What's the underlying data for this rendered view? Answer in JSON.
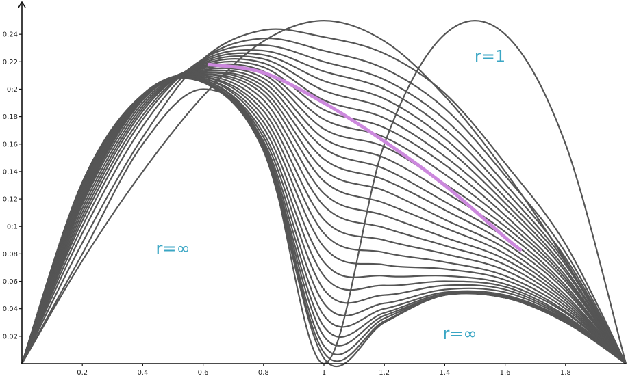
{
  "chart_data": {
    "type": "line",
    "title": "",
    "xlabel": "",
    "ylabel": "",
    "xlim": [
      0,
      2
    ],
    "ylim": [
      0,
      0.26
    ],
    "grid": false,
    "x_ticks": [
      "0.2",
      "0.4",
      "0.6",
      "0.8",
      "1",
      "1.2",
      "1.4",
      "1.6",
      "1.8"
    ],
    "y_ticks": [
      "0.02",
      "0.04",
      "0.06",
      "0.08",
      "0:1",
      "0.12",
      "0.14",
      "0.16",
      "0.18",
      "0:2",
      "0.22",
      "0.24"
    ],
    "annotations": [
      {
        "text": "r=1",
        "x": 1.55,
        "y": 0.22
      },
      {
        "text": "r=∞",
        "x": 0.5,
        "y": 0.08
      },
      {
        "text": "r=∞",
        "x": 1.45,
        "y": 0.018
      }
    ],
    "colors": {
      "curves": "#555555",
      "highlight": "#cc88dd",
      "annotation": "#3aa6c4",
      "axis": "#111111"
    },
    "series": [
      {
        "x": [
          0,
          0.2,
          0.4,
          0.6,
          0.8,
          1,
          1.2,
          1.4,
          1.6,
          1.8,
          2
        ],
        "y": [
          0,
          0.08,
          0.16,
          0.2,
          0.16,
          0,
          0.16,
          0.24,
          0.24,
          0.16,
          0
        ]
      },
      {
        "x": [
          0,
          0.2,
          0.4,
          0.6,
          0.8,
          1,
          1.2,
          1.4,
          1.6,
          1.8,
          2
        ],
        "y": [
          0,
          0.13,
          0.195,
          0.205,
          0.155,
          0.004,
          0.03,
          0.05,
          0.048,
          0.03,
          0
        ]
      },
      {
        "x": [
          0,
          0.2,
          0.4,
          0.6,
          0.8,
          1,
          1.2,
          1.4,
          1.6,
          1.8,
          2
        ],
        "y": [
          0,
          0.13,
          0.195,
          0.205,
          0.155,
          0.008,
          0.031,
          0.05,
          0.048,
          0.031,
          0
        ]
      },
      {
        "x": [
          0,
          0.2,
          0.4,
          0.6,
          0.8,
          1,
          1.2,
          1.4,
          1.6,
          1.8,
          2
        ],
        "y": [
          0,
          0.131,
          0.195,
          0.205,
          0.156,
          0.013,
          0.033,
          0.05,
          0.048,
          0.031,
          0
        ]
      },
      {
        "x": [
          0,
          0.2,
          0.4,
          0.6,
          0.8,
          1,
          1.2,
          1.4,
          1.6,
          1.8,
          2
        ],
        "y": [
          0,
          0.131,
          0.195,
          0.205,
          0.157,
          0.02,
          0.035,
          0.05,
          0.048,
          0.031,
          0
        ]
      },
      {
        "x": [
          0,
          0.2,
          0.4,
          0.6,
          0.8,
          1,
          1.2,
          1.4,
          1.6,
          1.8,
          2
        ],
        "y": [
          0,
          0.131,
          0.195,
          0.205,
          0.158,
          0.027,
          0.037,
          0.051,
          0.049,
          0.032,
          0
        ]
      },
      {
        "x": [
          0,
          0.2,
          0.4,
          0.6,
          0.8,
          1,
          1.2,
          1.4,
          1.6,
          1.8,
          2
        ],
        "y": [
          0,
          0.132,
          0.195,
          0.206,
          0.16,
          0.035,
          0.04,
          0.052,
          0.05,
          0.032,
          0
        ]
      },
      {
        "x": [
          0,
          0.2,
          0.4,
          0.6,
          0.8,
          1,
          1.2,
          1.4,
          1.6,
          1.8,
          2
        ],
        "y": [
          0,
          0.132,
          0.195,
          0.206,
          0.162,
          0.044,
          0.044,
          0.054,
          0.052,
          0.033,
          0
        ]
      },
      {
        "x": [
          0,
          0.2,
          0.4,
          0.6,
          0.8,
          1,
          1.2,
          1.4,
          1.6,
          1.8,
          2
        ],
        "y": [
          0,
          0.132,
          0.196,
          0.207,
          0.165,
          0.054,
          0.05,
          0.057,
          0.054,
          0.034,
          0
        ]
      },
      {
        "x": [
          0,
          0.2,
          0.4,
          0.6,
          0.8,
          1,
          1.2,
          1.4,
          1.6,
          1.8,
          2
        ],
        "y": [
          0,
          0.132,
          0.196,
          0.207,
          0.168,
          0.064,
          0.057,
          0.06,
          0.056,
          0.035,
          0
        ]
      },
      {
        "x": [
          0,
          0.2,
          0.4,
          0.6,
          0.8,
          1,
          1.2,
          1.4,
          1.6,
          1.8,
          2
        ],
        "y": [
          0,
          0.132,
          0.196,
          0.208,
          0.172,
          0.074,
          0.064,
          0.064,
          0.058,
          0.037,
          0
        ]
      },
      {
        "x": [
          0,
          0.2,
          0.4,
          0.6,
          0.8,
          1,
          1.2,
          1.4,
          1.6,
          1.8,
          2
        ],
        "y": [
          0,
          0.131,
          0.196,
          0.208,
          0.176,
          0.085,
          0.072,
          0.069,
          0.061,
          0.038,
          0
        ]
      },
      {
        "x": [
          0,
          0.2,
          0.4,
          0.6,
          0.8,
          1,
          1.2,
          1.4,
          1.6,
          1.8,
          2
        ],
        "y": [
          0,
          0.131,
          0.196,
          0.209,
          0.18,
          0.095,
          0.081,
          0.074,
          0.064,
          0.04,
          0
        ]
      },
      {
        "x": [
          0,
          0.2,
          0.4,
          0.6,
          0.8,
          1,
          1.2,
          1.4,
          1.6,
          1.8,
          2
        ],
        "y": [
          0,
          0.13,
          0.196,
          0.209,
          0.184,
          0.105,
          0.09,
          0.08,
          0.068,
          0.042,
          0
        ]
      },
      {
        "x": [
          0,
          0.2,
          0.4,
          0.6,
          0.8,
          1,
          1.2,
          1.4,
          1.6,
          1.8,
          2
        ],
        "y": [
          0,
          0.13,
          0.196,
          0.21,
          0.188,
          0.115,
          0.099,
          0.086,
          0.072,
          0.044,
          0
        ]
      },
      {
        "x": [
          0,
          0.2,
          0.4,
          0.6,
          0.8,
          1,
          1.2,
          1.4,
          1.6,
          1.8,
          2
        ],
        "y": [
          0,
          0.129,
          0.196,
          0.211,
          0.192,
          0.124,
          0.108,
          0.092,
          0.076,
          0.046,
          0
        ]
      },
      {
        "x": [
          0,
          0.2,
          0.4,
          0.6,
          0.8,
          1,
          1.2,
          1.4,
          1.6,
          1.8,
          2
        ],
        "y": [
          0,
          0.128,
          0.196,
          0.211,
          0.196,
          0.133,
          0.117,
          0.099,
          0.08,
          0.048,
          0
        ]
      },
      {
        "x": [
          0,
          0.2,
          0.4,
          0.6,
          0.8,
          1,
          1.2,
          1.4,
          1.6,
          1.8,
          2
        ],
        "y": [
          0,
          0.127,
          0.196,
          0.212,
          0.199,
          0.141,
          0.126,
          0.105,
          0.084,
          0.05,
          0
        ]
      },
      {
        "x": [
          0,
          0.2,
          0.4,
          0.6,
          0.8,
          1,
          1.2,
          1.4,
          1.6,
          1.8,
          2
        ],
        "y": [
          0,
          0.125,
          0.195,
          0.212,
          0.202,
          0.149,
          0.134,
          0.112,
          0.088,
          0.053,
          0
        ]
      },
      {
        "x": [
          0,
          0.2,
          0.4,
          0.6,
          0.8,
          1,
          1.2,
          1.4,
          1.6,
          1.8,
          2
        ],
        "y": [
          0,
          0.124,
          0.195,
          0.213,
          0.205,
          0.157,
          0.142,
          0.118,
          0.092,
          0.055,
          0
        ]
      },
      {
        "x": [
          0,
          0.2,
          0.4,
          0.6,
          0.8,
          1,
          1.2,
          1.4,
          1.6,
          1.8,
          2
        ],
        "y": [
          0,
          0.122,
          0.194,
          0.214,
          0.208,
          0.164,
          0.15,
          0.125,
          0.096,
          0.057,
          0
        ]
      },
      {
        "x": [
          0,
          0.2,
          0.4,
          0.6,
          0.8,
          1,
          1.2,
          1.4,
          1.6,
          1.8,
          2
        ],
        "y": [
          0,
          0.12,
          0.193,
          0.215,
          0.211,
          0.171,
          0.158,
          0.131,
          0.1,
          0.06,
          0
        ]
      },
      {
        "x": [
          0,
          0.2,
          0.4,
          0.6,
          0.8,
          1,
          1.2,
          1.4,
          1.6,
          1.8,
          2
        ],
        "y": [
          0,
          0.118,
          0.192,
          0.216,
          0.213,
          0.178,
          0.165,
          0.138,
          0.104,
          0.062,
          0
        ]
      },
      {
        "x": [
          0,
          0.2,
          0.4,
          0.6,
          0.8,
          1,
          1.2,
          1.4,
          1.6,
          1.8,
          2
        ],
        "y": [
          0,
          0.116,
          0.19,
          0.217,
          0.216,
          0.185,
          0.172,
          0.145,
          0.108,
          0.064,
          0
        ]
      },
      {
        "x": [
          0,
          0.2,
          0.4,
          0.6,
          0.8,
          1,
          1.2,
          1.4,
          1.6,
          1.8,
          2
        ],
        "y": [
          0,
          0.113,
          0.188,
          0.218,
          0.219,
          0.192,
          0.179,
          0.151,
          0.113,
          0.067,
          0
        ]
      },
      {
        "x": [
          0,
          0.2,
          0.4,
          0.6,
          0.8,
          1,
          1.2,
          1.4,
          1.6,
          1.8,
          2
        ],
        "y": [
          0,
          0.11,
          0.186,
          0.219,
          0.222,
          0.199,
          0.186,
          0.158,
          0.117,
          0.069,
          0
        ]
      },
      {
        "x": [
          0,
          0.2,
          0.4,
          0.6,
          0.8,
          1,
          1.2,
          1.4,
          1.6,
          1.8,
          2
        ],
        "y": [
          0,
          0.107,
          0.184,
          0.22,
          0.225,
          0.206,
          0.193,
          0.164,
          0.121,
          0.072,
          0
        ]
      },
      {
        "x": [
          0,
          0.2,
          0.4,
          0.6,
          0.8,
          1,
          1.2,
          1.4,
          1.6,
          1.8,
          2
        ],
        "y": [
          0,
          0.104,
          0.181,
          0.221,
          0.228,
          0.213,
          0.2,
          0.171,
          0.126,
          0.074,
          0
        ]
      },
      {
        "x": [
          0,
          0.2,
          0.4,
          0.6,
          0.8,
          1,
          1.2,
          1.4,
          1.6,
          1.8,
          2
        ],
        "y": [
          0,
          0.1,
          0.178,
          0.222,
          0.232,
          0.22,
          0.207,
          0.178,
          0.131,
          0.077,
          0
        ]
      },
      {
        "x": [
          0,
          0.2,
          0.4,
          0.6,
          0.8,
          1,
          1.2,
          1.4,
          1.6,
          1.8,
          2
        ],
        "y": [
          0,
          0.095,
          0.173,
          0.222,
          0.237,
          0.228,
          0.215,
          0.186,
          0.137,
          0.081,
          0
        ]
      },
      {
        "x": [
          0,
          0.2,
          0.4,
          0.6,
          0.8,
          1,
          1.2,
          1.4,
          1.6,
          1.8,
          2
        ],
        "y": [
          0,
          0.088,
          0.165,
          0.222,
          0.243,
          0.238,
          0.226,
          0.197,
          0.146,
          0.087,
          0
        ]
      },
      {
        "x": [
          0,
          0.2,
          0.4,
          0.6,
          0.8,
          1,
          1.2,
          1.4,
          1.6,
          1.8,
          2
        ],
        "y": [
          0,
          0.075,
          0.14,
          0.195,
          0.235,
          0.25,
          0.235,
          0.195,
          0.14,
          0.075,
          0
        ]
      }
    ],
    "highlight": {
      "x": [
        0.62,
        0.8,
        1.0,
        1.2,
        1.4,
        1.6,
        1.65
      ],
      "y": [
        0.218,
        0.212,
        0.19,
        0.162,
        0.13,
        0.092,
        0.083
      ]
    }
  }
}
